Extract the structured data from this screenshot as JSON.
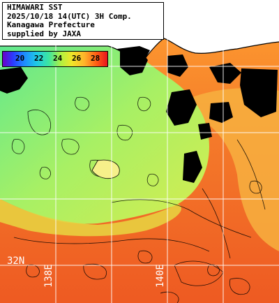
{
  "title": {
    "line1": "HIMAWARI SST",
    "line2": "2025/10/18 14(UTC) 3H Comp.",
    "line3": "Kanagawa Prefecture",
    "line4": "supplied by JAXA"
  },
  "legend": {
    "ticks": [
      "20",
      "22",
      "24",
      "26",
      "28"
    ],
    "colors": [
      "#6a00c8",
      "#1e88ff",
      "#3de6a0",
      "#f0e628",
      "#ff5a14",
      "#e8141e"
    ]
  },
  "grid_labels": {
    "latitude": "32N",
    "longitude_west": "138E",
    "longitude_east": "140E"
  },
  "colors": {
    "land": "#ffffff",
    "cloud": "#000000",
    "cool_water": "#a8f064",
    "warm_water": "#f06a28",
    "grid": "#ffffff"
  }
}
